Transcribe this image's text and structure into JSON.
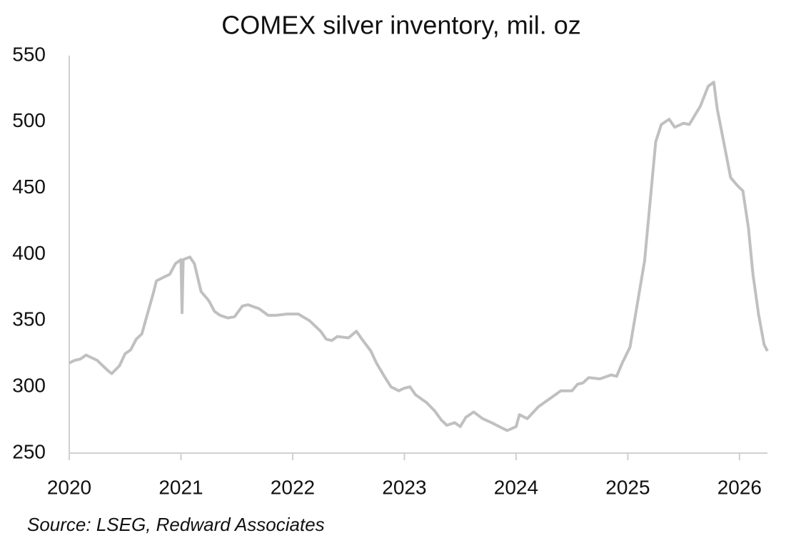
{
  "chart_data": {
    "type": "line",
    "title": "COMEX silver inventory, mil. oz",
    "source": "Source: LSEG, Redward Associates",
    "x": [
      2020.0,
      2020.05,
      2020.1,
      2020.15,
      2020.2,
      2020.25,
      2020.3,
      2020.35,
      2020.38,
      2020.45,
      2020.5,
      2020.55,
      2020.6,
      2020.65,
      2020.7,
      2020.75,
      2020.78,
      2020.85,
      2020.9,
      2020.95,
      2021.0,
      2021.01,
      2021.02,
      2021.08,
      2021.12,
      2021.18,
      2021.25,
      2021.3,
      2021.35,
      2021.42,
      2021.48,
      2021.55,
      2021.6,
      2021.7,
      2021.78,
      2021.85,
      2021.95,
      2022.05,
      2022.15,
      2022.25,
      2022.3,
      2022.35,
      2022.4,
      2022.5,
      2022.57,
      2022.62,
      2022.7,
      2022.75,
      2022.82,
      2022.88,
      2022.95,
      2023.0,
      2023.05,
      2023.1,
      2023.2,
      2023.27,
      2023.33,
      2023.38,
      2023.45,
      2023.5,
      2023.55,
      2023.62,
      2023.7,
      2023.78,
      2023.85,
      2023.92,
      2024.0,
      2024.03,
      2024.1,
      2024.2,
      2024.3,
      2024.4,
      2024.5,
      2024.55,
      2024.6,
      2024.65,
      2024.75,
      2024.85,
      2024.9,
      2024.95,
      2025.02,
      2025.08,
      2025.15,
      2025.2,
      2025.25,
      2025.3,
      2025.37,
      2025.42,
      2025.5,
      2025.55,
      2025.6,
      2025.65,
      2025.72,
      2025.77,
      2025.8,
      2025.87,
      2025.92,
      2025.98,
      2026.03,
      2026.08,
      2026.12,
      2026.17,
      2026.22,
      2026.25
    ],
    "series": [
      {
        "name": "COMEX silver inventory",
        "color": "#c0c0c0",
        "values": [
          318,
          320,
          321,
          324,
          322,
          320,
          316,
          312,
          310,
          316,
          325,
          328,
          336,
          340,
          355,
          370,
          380,
          383,
          385,
          393,
          396,
          356,
          396,
          398,
          393,
          372,
          365,
          357,
          354,
          352,
          353,
          361,
          362,
          359,
          354,
          354,
          355,
          355,
          350,
          342,
          336,
          335,
          338,
          337,
          342,
          336,
          327,
          318,
          308,
          300,
          297,
          299,
          300,
          294,
          288,
          282,
          275,
          271,
          273,
          270,
          277,
          281,
          276,
          273,
          270,
          267,
          270,
          279,
          276,
          285,
          291,
          297,
          297,
          302,
          303,
          307,
          306,
          309,
          308,
          318,
          330,
          360,
          395,
          440,
          485,
          498,
          502,
          496,
          499,
          498,
          505,
          512,
          527,
          530,
          510,
          480,
          458,
          452,
          448,
          420,
          385,
          355,
          332,
          327
        ]
      }
    ],
    "xlim": [
      2020,
      2026.25
    ],
    "xticks": [
      2020,
      2021,
      2022,
      2023,
      2024,
      2025,
      2026
    ],
    "ylim": [
      250,
      550
    ],
    "yticks": [
      250,
      300,
      350,
      400,
      450,
      500,
      550
    ],
    "grid": false
  }
}
